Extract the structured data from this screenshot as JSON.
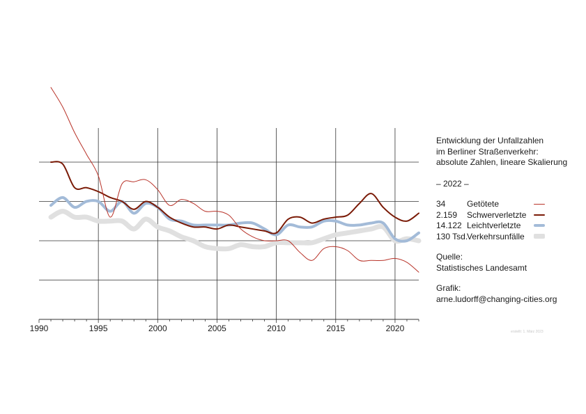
{
  "chart_data": {
    "type": "line",
    "title_lines": [
      "Entwicklung der Unfallzahlen",
      "im Berliner Straßenverkehr:",
      "absolute Zahlen, lineare Skalierung"
    ],
    "year_label": "– 2022 –",
    "xlim": [
      1990,
      2022
    ],
    "ylim": [
      0,
      1.2
    ],
    "x_ticks": [
      "1990",
      "1995",
      "2000",
      "2005",
      "2010",
      "2015",
      "2020"
    ],
    "series": [
      {
        "name": "Verkehrsunfälle",
        "value_label": "130 Tsd.",
        "color": "#e0e0e0",
        "width": 7,
        "x": [
          1991,
          1992,
          1993,
          1994,
          1995,
          1996,
          1997,
          1998,
          1999,
          2000,
          2001,
          2002,
          2003,
          2004,
          2005,
          2006,
          2007,
          2008,
          2009,
          2010,
          2011,
          2012,
          2013,
          2014,
          2015,
          2016,
          2017,
          2018,
          2019,
          2020,
          2021,
          2022
        ],
        "y": [
          0.52,
          0.55,
          0.52,
          0.52,
          0.5,
          0.5,
          0.5,
          0.46,
          0.51,
          0.47,
          0.45,
          0.42,
          0.4,
          0.37,
          0.36,
          0.36,
          0.38,
          0.37,
          0.37,
          0.39,
          0.39,
          0.39,
          0.39,
          0.41,
          0.43,
          0.44,
          0.45,
          0.46,
          0.47,
          0.4,
          0.41,
          0.4
        ]
      },
      {
        "name": "Leichtverletzte",
        "value_label": "14.122",
        "color": "#a3bbd8",
        "width": 4,
        "x": [
          1991,
          1992,
          1993,
          1994,
          1995,
          1996,
          1997,
          1998,
          1999,
          2000,
          2001,
          2002,
          2003,
          2004,
          2005,
          2006,
          2007,
          2008,
          2009,
          2010,
          2011,
          2012,
          2013,
          2014,
          2015,
          2016,
          2017,
          2018,
          2019,
          2020,
          2021,
          2022
        ],
        "y": [
          0.58,
          0.62,
          0.57,
          0.6,
          0.6,
          0.55,
          0.6,
          0.54,
          0.59,
          0.57,
          0.51,
          0.5,
          0.48,
          0.48,
          0.48,
          0.48,
          0.49,
          0.49,
          0.46,
          0.43,
          0.48,
          0.47,
          0.47,
          0.5,
          0.5,
          0.48,
          0.48,
          0.49,
          0.49,
          0.41,
          0.4,
          0.44
        ]
      },
      {
        "name": "Schwerverletzte",
        "value_label": "2.159",
        "color": "#7a1a06",
        "width": 2,
        "x": [
          1991,
          1992,
          1993,
          1994,
          1995,
          1996,
          1997,
          1998,
          1999,
          2000,
          2001,
          2002,
          2003,
          2004,
          2005,
          2006,
          2007,
          2008,
          2009,
          2010,
          2011,
          2012,
          2013,
          2014,
          2015,
          2016,
          2017,
          2018,
          2019,
          2020,
          2021,
          2022
        ],
        "y": [
          0.8,
          0.79,
          0.67,
          0.67,
          0.65,
          0.62,
          0.6,
          0.56,
          0.6,
          0.57,
          0.52,
          0.49,
          0.47,
          0.47,
          0.46,
          0.48,
          0.47,
          0.46,
          0.45,
          0.44,
          0.51,
          0.52,
          0.49,
          0.51,
          0.52,
          0.53,
          0.59,
          0.64,
          0.57,
          0.52,
          0.5,
          0.54
        ]
      },
      {
        "name": "Getötete",
        "value_label": "34",
        "color": "#b83228",
        "width": 1,
        "x": [
          1991,
          1992,
          1993,
          1994,
          1995,
          1996,
          1997,
          1998,
          1999,
          2000,
          2001,
          2002,
          2003,
          2004,
          2005,
          2006,
          2007,
          2008,
          2009,
          2010,
          2011,
          2012,
          2013,
          2014,
          2015,
          2016,
          2017,
          2018,
          2019,
          2020,
          2021,
          2022
        ],
        "y": [
          1.18,
          1.08,
          0.95,
          0.84,
          0.73,
          0.52,
          0.69,
          0.7,
          0.71,
          0.66,
          0.58,
          0.61,
          0.59,
          0.55,
          0.55,
          0.53,
          0.46,
          0.42,
          0.4,
          0.4,
          0.4,
          0.34,
          0.3,
          0.36,
          0.37,
          0.35,
          0.3,
          0.3,
          0.3,
          0.31,
          0.29,
          0.24
        ]
      }
    ],
    "source_lines": [
      "Quelle:",
      "Statistisches Landesamt"
    ],
    "credit_lines": [
      "Grafik:",
      "arne.ludorff@changing-cities.org"
    ],
    "created_note": "erstellt: 1. März 2023"
  }
}
